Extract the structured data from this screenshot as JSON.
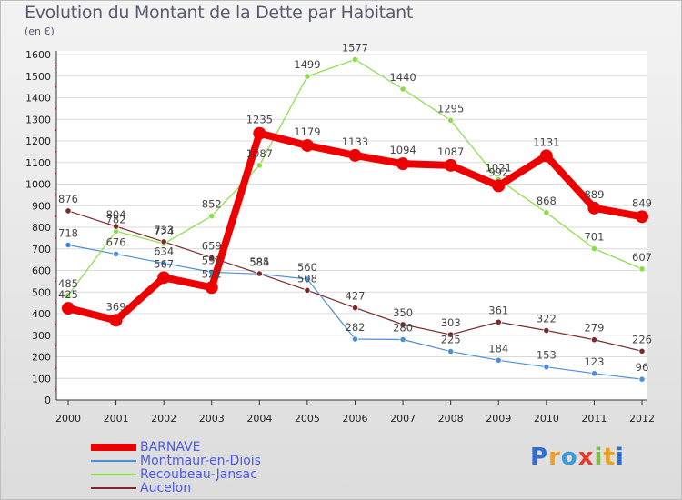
{
  "title": "Evolution du Montant de la Dette par Habitant",
  "subtitle": "(en €)",
  "logo_text": "Proxiti",
  "chart_data": {
    "type": "line",
    "title": "Evolution du Montant de la Dette par Habitant",
    "subtitle": "(en €)",
    "xlabel": "",
    "ylabel": "",
    "x": [
      "2000",
      "2001",
      "2002",
      "2003",
      "2004",
      "2005",
      "2006",
      "2007",
      "2008",
      "2009",
      "2010",
      "2011",
      "2012"
    ],
    "ylim": [
      0,
      1600
    ],
    "yticks": [
      0,
      100,
      200,
      300,
      400,
      500,
      600,
      700,
      800,
      900,
      1000,
      1100,
      1200,
      1300,
      1400,
      1500,
      1600
    ],
    "grid": "horizontal",
    "legend": "bottom-left",
    "series": [
      {
        "name": "BARNAVE",
        "color": "#ee0000",
        "values": [
          425,
          369,
          567,
          521,
          1235,
          1179,
          1133,
          1094,
          1087,
          992,
          1131,
          889,
          849
        ],
        "labels": [
          "425",
          "369",
          "567",
          "521",
          "1235",
          "1179",
          "1133",
          "1094",
          "1087",
          "992",
          "1131",
          "889",
          "849"
        ]
      },
      {
        "name": "Montmaur-en-Diois",
        "color": "#4a90d9",
        "values": [
          718,
          676,
          634,
          592,
          584,
          560,
          282,
          280,
          225,
          184,
          153,
          123,
          96
        ],
        "labels": [
          "718",
          "676",
          "634",
          "592",
          "584",
          "560",
          "282",
          "280",
          "225",
          "184",
          "153",
          "123",
          "96"
        ]
      },
      {
        "name": "Recoubeau-Jansac",
        "color": "#88dd44",
        "values": [
          485,
          782,
          724,
          852,
          1087,
          1499,
          1577,
          1440,
          1295,
          1021,
          868,
          701,
          607
        ],
        "labels": [
          "485",
          "782",
          "724",
          "852",
          "1087",
          "1499",
          "1577",
          "1440",
          "1295",
          "1021",
          "868",
          "701",
          "607"
        ]
      },
      {
        "name": "Aucelon",
        "color": "#7a2a2a",
        "values": [
          876,
          804,
          733,
          659,
          585,
          508,
          427,
          350,
          303,
          361,
          322,
          279,
          226
        ],
        "labels": [
          "876",
          "804",
          "733",
          "659",
          "585",
          "508",
          "427",
          "350",
          "303",
          "361",
          "322",
          "279",
          "226"
        ]
      }
    ]
  }
}
